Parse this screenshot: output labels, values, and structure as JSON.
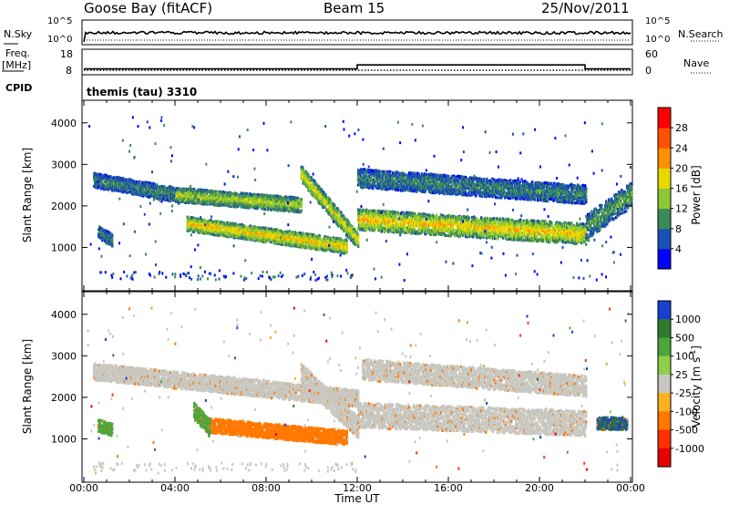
{
  "header": {
    "station": "Goose Bay (fitACF)",
    "beam": "Beam 15",
    "date": "25/Nov/2011"
  },
  "panels": {
    "noise": {
      "left_label": "N.Sky",
      "right_label": "N.Search",
      "left_ticks": [
        "10^5",
        "10^0"
      ],
      "right_ticks": [
        "10^5",
        "10^0"
      ]
    },
    "freq": {
      "left_label_1": "Freq.",
      "left_label_2": "[MHz]",
      "right_label": "Nave",
      "left_ticks": [
        "18",
        "8"
      ],
      "right_ticks": [
        "60",
        "0"
      ]
    },
    "cpid": {
      "label": "CPID",
      "program": "themis (tau) 3310"
    }
  },
  "axes": {
    "ylabel": "Slant Range [km]",
    "xlabel": "Time UT",
    "y_ticks": [
      "1000",
      "2000",
      "3000",
      "4000"
    ],
    "x_ticks": [
      "00:00",
      "04:00",
      "08:00",
      "12:00",
      "16:00",
      "20:00",
      "00:00"
    ]
  },
  "colorbars": {
    "power": {
      "label": "Power [dB]",
      "ticks": [
        "4",
        "8",
        "12",
        "16",
        "20",
        "24",
        "28"
      ],
      "colors": [
        "#0000ff",
        "#1a4fb3",
        "#3c8a5a",
        "#8cc832",
        "#e8d800",
        "#ff9000",
        "#ff5000",
        "#ff0000"
      ]
    },
    "velocity": {
      "label": "Velocity [m s",
      "label_sup": "-1",
      "label_end": "]",
      "ticks": [
        "1000",
        "500",
        "100",
        "25",
        "-25",
        "-100",
        "-500",
        "-1000"
      ],
      "colors": [
        "#1a3fd0",
        "#2e7b2e",
        "#4ca63c",
        "#8ed04a",
        "#c8c8c0",
        "#ffb020",
        "#ff7800",
        "#ff3000",
        "#e80000"
      ]
    }
  },
  "chart_data": {
    "type": "heatmap",
    "title": "Goose Bay (fitACF) Beam 15 25/Nov/2011",
    "xlabel": "Time UT",
    "ylabel": "Slant Range [km]",
    "xlim": [
      0,
      24
    ],
    "ylim": [
      0,
      4500
    ],
    "frequency_mhz": {
      "x": [
        0,
        12,
        12,
        22,
        22,
        24
      ],
      "y": [
        10,
        10,
        12,
        12,
        10,
        10
      ]
    },
    "nave": {
      "x": [
        0,
        24
      ],
      "y": [
        8,
        8
      ]
    },
    "power_bands": [
      {
        "t_start": 0.4,
        "t_end": 4.0,
        "range_start": 2650,
        "range_end": 2300,
        "width": 350,
        "level": 8
      },
      {
        "t_start": 4.0,
        "t_end": 9.5,
        "range_start": 2300,
        "range_end": 2050,
        "width": 350,
        "level": 14
      },
      {
        "t_start": 4.5,
        "t_end": 11.5,
        "range_start": 1600,
        "range_end": 1050,
        "width": 350,
        "level": 18
      },
      {
        "t_start": 9.5,
        "t_end": 12.0,
        "range_start": 2800,
        "range_end": 1200,
        "width": 400,
        "level": 16
      },
      {
        "t_start": 12.0,
        "t_end": 22.0,
        "range_start": 1700,
        "range_end": 1350,
        "width": 500,
        "level": 18
      },
      {
        "t_start": 12.0,
        "t_end": 22.0,
        "range_start": 2700,
        "range_end": 2300,
        "width": 450,
        "level": 8
      },
      {
        "t_start": 22.0,
        "t_end": 24.0,
        "range_start": 1500,
        "range_end": 2300,
        "width": 600,
        "level": 10
      },
      {
        "t_start": 0.6,
        "t_end": 1.2,
        "range_start": 1400,
        "range_end": 1200,
        "width": 300,
        "level": 8
      }
    ],
    "velocity_bands": [
      {
        "t_start": 0.4,
        "t_end": 12.0,
        "range_start": 2650,
        "range_end": 2000,
        "width": 400,
        "velocity": 0
      },
      {
        "t_start": 5.5,
        "t_end": 11.5,
        "range_start": 1350,
        "range_end": 1050,
        "width": 350,
        "velocity": -150
      },
      {
        "t_start": 4.8,
        "t_end": 5.5,
        "range_start": 1700,
        "range_end": 1300,
        "width": 400,
        "velocity": 150
      },
      {
        "t_start": 9.5,
        "t_end": 12.0,
        "range_start": 2600,
        "range_end": 1300,
        "width": 500,
        "velocity": 0
      },
      {
        "t_start": 12.0,
        "t_end": 22.0,
        "range_start": 1600,
        "range_end": 1400,
        "width": 600,
        "velocity": 0
      },
      {
        "t_start": 12.2,
        "t_end": 22.0,
        "range_start": 2700,
        "range_end": 2300,
        "width": 500,
        "velocity": 0
      },
      {
        "t_start": 22.5,
        "t_end": 23.8,
        "range_start": 1400,
        "range_end": 1400,
        "width": 300,
        "velocity": 700
      },
      {
        "t_start": 0.6,
        "t_end": 1.2,
        "range_start": 1350,
        "range_end": 1250,
        "width": 300,
        "velocity": 120
      }
    ]
  }
}
